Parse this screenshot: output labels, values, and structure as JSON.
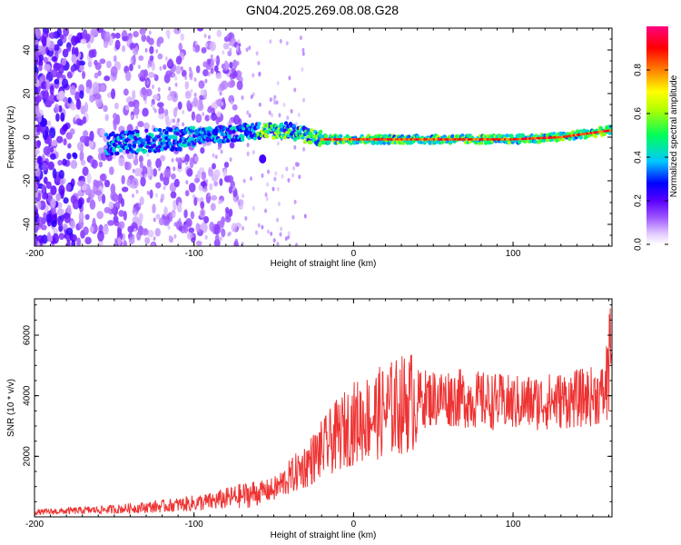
{
  "title": "GN04.2025.269.08.08.G28",
  "chart_data": [
    {
      "type": "heatmap",
      "xlabel": "Height of straight line (km)",
      "ylabel": "Frequency (Hz)",
      "xlim": [
        -200,
        162
      ],
      "ylim": [
        -50,
        50
      ],
      "x_ticks": [
        -200,
        -100,
        0,
        100
      ],
      "y_ticks": [
        -40,
        -20,
        0,
        20,
        40
      ],
      "colorbar": {
        "label": "Normalized spectral amplitude",
        "range": [
          0,
          1
        ],
        "ticks": [
          "0.0",
          "0.2",
          "0.4",
          "0.6",
          "0.8"
        ],
        "colors": [
          "#ffffff",
          "#b56cff",
          "#4b00ff",
          "#0000ff",
          "#00ffff",
          "#00ff00",
          "#ffff00",
          "#ff8000",
          "#ff0000",
          "#ff0080"
        ]
      },
      "ridge": {
        "description_points": [
          {
            "x": -150,
            "y": -3
          },
          {
            "x": -100,
            "y": 0
          },
          {
            "x": -60,
            "y": 3
          },
          {
            "x": -40,
            "y": 3
          },
          {
            "x": -20,
            "y": -1
          },
          {
            "x": 0,
            "y": -1
          },
          {
            "x": 100,
            "y": -1
          },
          {
            "x": 130,
            "y": 0
          },
          {
            "x": 160,
            "y": 3
          }
        ]
      }
    },
    {
      "type": "line",
      "xlabel": "Height of straight line (km)",
      "ylabel": "SNR (10 * v/v)",
      "xlim": [
        -200,
        162
      ],
      "ylim": [
        0,
        7200
      ],
      "x_ticks": [
        -200,
        -100,
        0,
        100
      ],
      "y_ticks": [
        2000,
        4000,
        6000
      ],
      "series": [
        {
          "name": "SNR",
          "color": "#ee3333",
          "trend": [
            {
              "x": -200,
              "y": 150
            },
            {
              "x": -150,
              "y": 250
            },
            {
              "x": -120,
              "y": 350
            },
            {
              "x": -90,
              "y": 500
            },
            {
              "x": -70,
              "y": 700
            },
            {
              "x": -50,
              "y": 900
            },
            {
              "x": -40,
              "y": 1300
            },
            {
              "x": -30,
              "y": 1700
            },
            {
              "x": -20,
              "y": 2200
            },
            {
              "x": -10,
              "y": 2700
            },
            {
              "x": 0,
              "y": 3100
            },
            {
              "x": 20,
              "y": 3500
            },
            {
              "x": 40,
              "y": 3900
            },
            {
              "x": 60,
              "y": 3950
            },
            {
              "x": 80,
              "y": 3850
            },
            {
              "x": 100,
              "y": 3750
            },
            {
              "x": 120,
              "y": 3800
            },
            {
              "x": 140,
              "y": 3900
            },
            {
              "x": 162,
              "y": 4100
            }
          ],
          "peak": {
            "x": 161,
            "y": 7100
          }
        }
      ]
    }
  ]
}
